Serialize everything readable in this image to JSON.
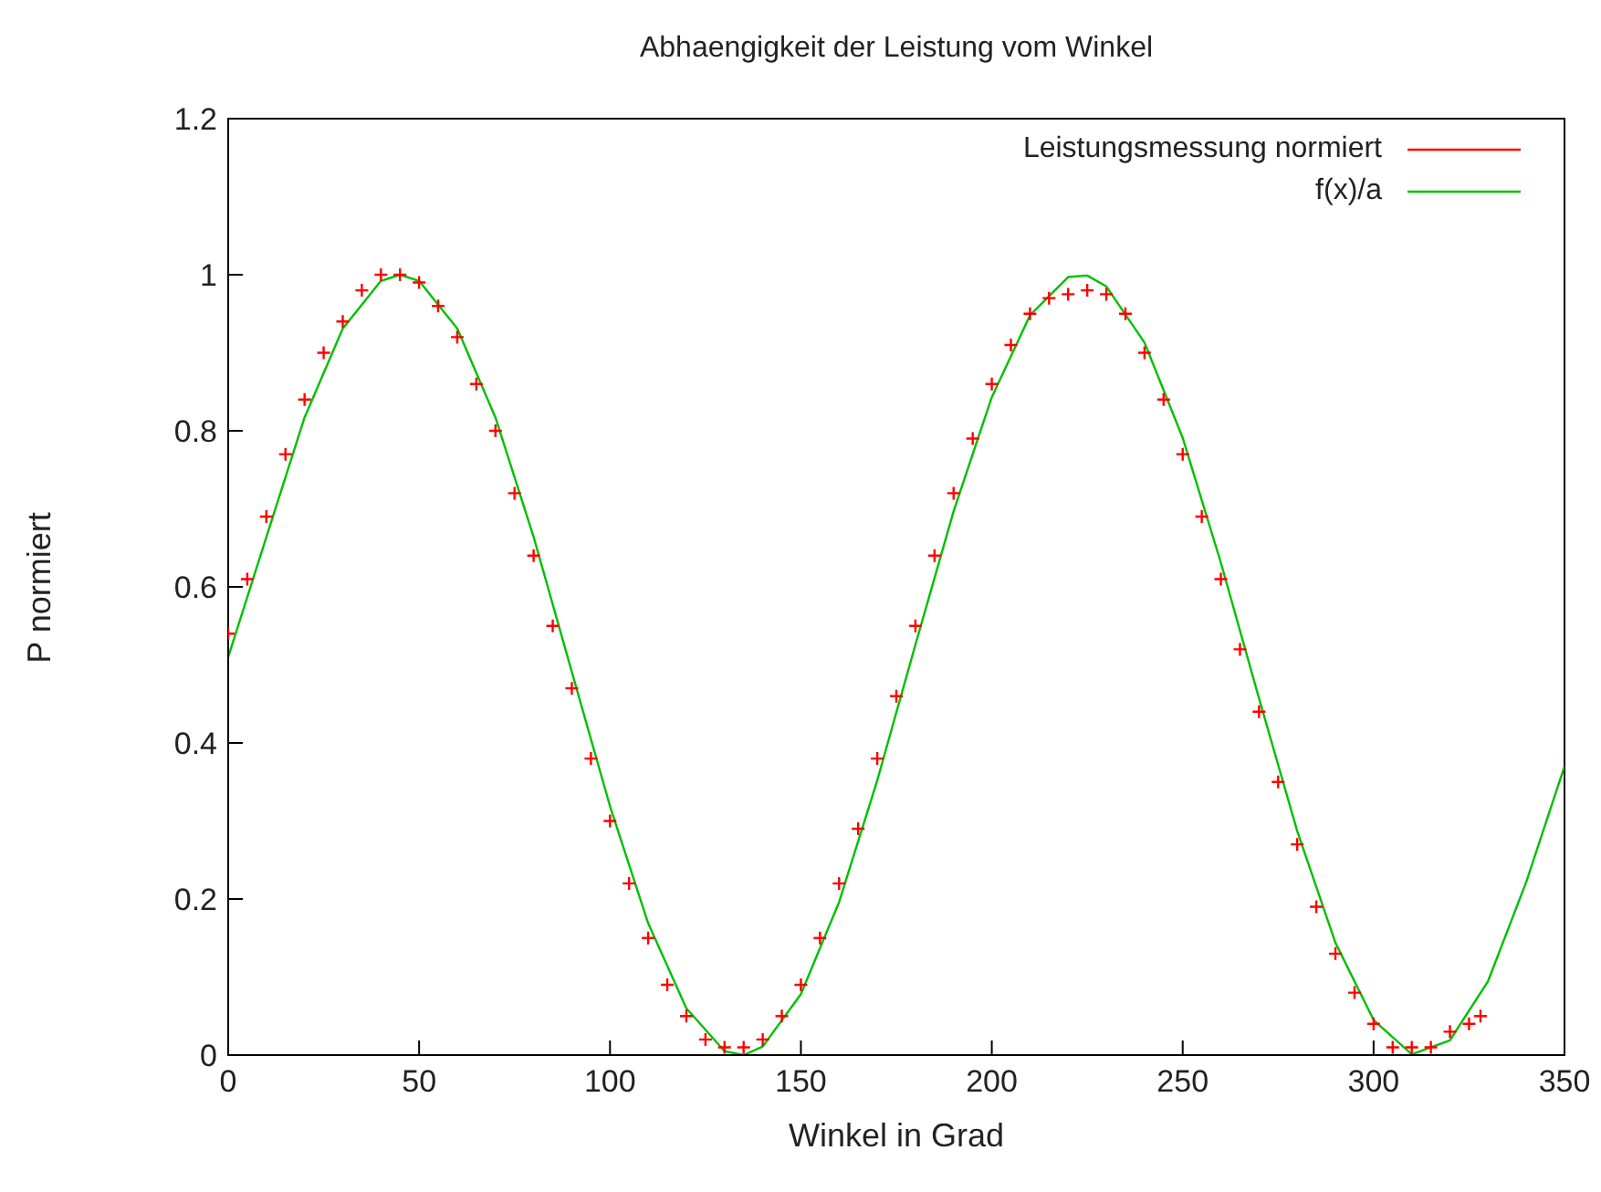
{
  "chart_data": {
    "type": "scatter",
    "title": "Abhaengigkeit der Leistung vom Winkel",
    "xlabel": "Winkel in Grad",
    "ylabel": "P normiert",
    "xlim": [
      0,
      350
    ],
    "xticks": [
      0,
      50,
      100,
      150,
      200,
      250,
      300,
      350
    ],
    "ylim": [
      0,
      1.2
    ],
    "yticks": [
      0,
      0.2,
      0.4,
      0.6,
      0.8,
      1,
      1.2
    ],
    "grid": false,
    "legend": "top right",
    "series": [
      {
        "name": "Leistungsmessung normiert",
        "marker": "cross",
        "color": "#ff0000",
        "x": [
          0,
          5,
          10,
          15,
          20,
          25,
          30,
          35,
          40,
          45,
          50,
          55,
          60,
          65,
          70,
          75,
          80,
          85,
          90,
          95,
          100,
          105,
          110,
          115,
          120,
          125,
          130,
          135,
          140,
          145,
          150,
          155,
          160,
          165,
          170,
          175,
          180,
          185,
          190,
          195,
          200,
          205,
          210,
          215,
          220,
          225,
          230,
          235,
          240,
          245,
          250,
          255,
          260,
          265,
          270,
          275,
          280,
          285,
          290,
          295,
          300,
          305,
          310,
          315,
          320,
          325,
          328
        ],
        "values": [
          0.54,
          0.61,
          0.69,
          0.77,
          0.84,
          0.9,
          0.94,
          0.98,
          1.0,
          1.0,
          0.99,
          0.96,
          0.92,
          0.86,
          0.8,
          0.72,
          0.64,
          0.55,
          0.47,
          0.38,
          0.3,
          0.22,
          0.15,
          0.09,
          0.05,
          0.02,
          0.01,
          0.01,
          0.02,
          0.05,
          0.09,
          0.15,
          0.22,
          0.29,
          0.38,
          0.46,
          0.55,
          0.64,
          0.72,
          0.79,
          0.86,
          0.91,
          0.95,
          0.97,
          0.975,
          0.98,
          0.975,
          0.95,
          0.9,
          0.84,
          0.77,
          0.69,
          0.61,
          0.52,
          0.44,
          0.35,
          0.27,
          0.19,
          0.13,
          0.08,
          0.04,
          0.01,
          0.01,
          0.01,
          0.03,
          0.04,
          0.05
        ]
      },
      {
        "name": "f(x)/a",
        "type": "line",
        "marker": "none",
        "line_style": "solid",
        "color": "#00c000",
        "x": [
          0,
          10,
          20,
          30,
          40,
          45,
          50,
          60,
          70,
          80,
          90,
          100,
          110,
          120,
          130,
          135,
          140,
          150,
          160,
          170,
          180,
          190,
          200,
          210,
          220,
          225,
          230,
          240,
          250,
          260,
          270,
          280,
          290,
          300,
          310,
          320,
          330,
          340,
          350
        ],
        "values": [
          0.51,
          0.664,
          0.817,
          0.931,
          0.992,
          1.0,
          0.992,
          0.931,
          0.817,
          0.664,
          0.491,
          0.319,
          0.169,
          0.06,
          0.005,
          0,
          0.011,
          0.078,
          0.196,
          0.352,
          0.526,
          0.697,
          0.843,
          0.948,
          0.997,
          0.999,
          0.985,
          0.913,
          0.791,
          0.631,
          0.457,
          0.287,
          0.144,
          0.045,
          0.001,
          0.019,
          0.095,
          0.222,
          0.37
        ]
      }
    ]
  }
}
